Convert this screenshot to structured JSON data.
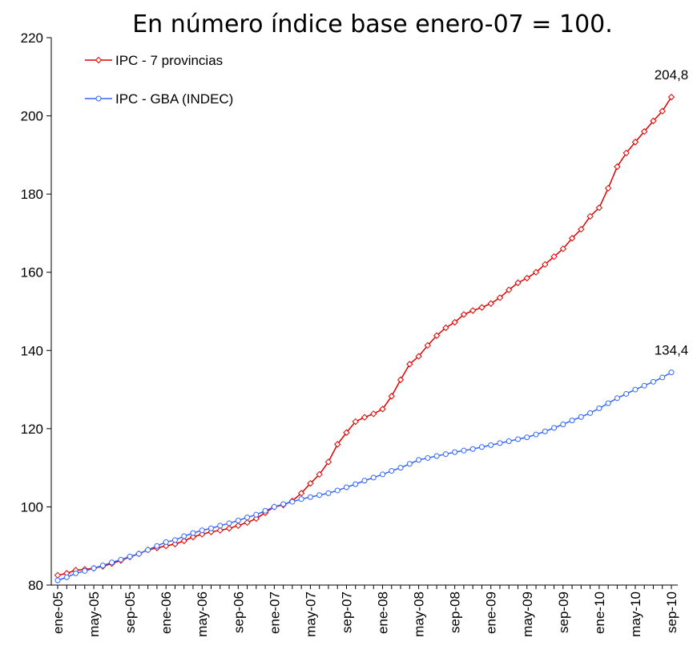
{
  "chart_data": {
    "type": "line",
    "title": "En número índice base enero-07 = 100.",
    "categories": [
      "ene-05",
      null,
      null,
      null,
      "may-05",
      null,
      null,
      null,
      "sep-05",
      null,
      null,
      null,
      "ene-06",
      null,
      null,
      null,
      "may-06",
      null,
      null,
      null,
      "sep-06",
      null,
      null,
      null,
      "ene-07",
      null,
      null,
      null,
      "may-07",
      null,
      null,
      null,
      "sep-07",
      null,
      null,
      null,
      "ene-08",
      null,
      null,
      null,
      "may-08",
      null,
      null,
      null,
      "sep-08",
      null,
      null,
      null,
      "ene-09",
      null,
      null,
      null,
      "may-09",
      null,
      null,
      null,
      "sep-09",
      null,
      null,
      null,
      "ene-10",
      null,
      null,
      null,
      "may-10",
      null,
      null,
      null,
      "sep-10"
    ],
    "series": [
      {
        "name": "IPC - 7 provincias",
        "color": "#e00000",
        "marker": "diamond",
        "values": [
          82.5,
          83,
          83.8,
          84,
          84.3,
          84.8,
          85.5,
          86.3,
          87.2,
          88,
          89,
          89.5,
          90,
          90.5,
          91.3,
          92.3,
          93,
          93.6,
          94,
          94.5,
          95.2,
          96,
          97,
          98.5,
          100,
          100.5,
          101.5,
          103.5,
          106,
          108.3,
          111.5,
          116,
          119,
          121.8,
          122.9,
          123.8,
          125,
          128.3,
          132.5,
          136.5,
          138.5,
          141.3,
          143.8,
          145.8,
          147.2,
          149.2,
          150.2,
          151,
          152,
          153.5,
          155.5,
          157.3,
          158.5,
          160,
          162,
          164,
          166,
          168.7,
          171,
          174.3,
          176.5,
          181.5,
          187,
          190.5,
          193.3,
          196,
          198.7,
          201.2,
          204.8
        ],
        "value_labels": [
          null,
          null,
          null,
          null,
          null,
          null,
          null,
          null,
          null,
          null,
          null,
          null,
          null,
          null,
          null,
          null,
          null,
          null,
          null,
          null,
          null,
          null,
          null,
          null,
          null,
          null,
          null,
          null,
          null,
          null,
          null,
          null,
          null,
          null,
          null,
          null,
          null,
          null,
          null,
          null,
          null,
          null,
          null,
          null,
          null,
          null,
          null,
          null,
          null,
          null,
          null,
          null,
          null,
          null,
          null,
          null,
          null,
          null,
          null,
          null,
          null,
          null,
          null,
          null,
          null,
          null,
          null,
          null,
          "204,8"
        ]
      },
      {
        "name": "IPC - GBA (INDEC)",
        "color": "#3366ff",
        "marker": "circle",
        "values": [
          81.2,
          82,
          83,
          83.6,
          84.3,
          85,
          85.8,
          86.5,
          87.3,
          88,
          89,
          90,
          91,
          91.5,
          92.5,
          93.3,
          94,
          94.5,
          95.2,
          95.8,
          96.5,
          97.3,
          98,
          99,
          100,
          100.7,
          101.3,
          102,
          102.5,
          103,
          103.5,
          104.2,
          105,
          105.8,
          106.7,
          107.5,
          108.3,
          109.2,
          110,
          111,
          112,
          112.5,
          113,
          113.5,
          114,
          114.4,
          114.8,
          115.3,
          115.8,
          116.3,
          116.8,
          117.3,
          117.8,
          118.5,
          119.3,
          120.2,
          121.1,
          122.1,
          123,
          124,
          125.2,
          126.5,
          127.8,
          128.9,
          130,
          131,
          132,
          133.1,
          134.4
        ],
        "value_labels": [
          null,
          null,
          null,
          null,
          null,
          null,
          null,
          null,
          null,
          null,
          null,
          null,
          null,
          null,
          null,
          null,
          null,
          null,
          null,
          null,
          null,
          null,
          null,
          null,
          null,
          null,
          null,
          null,
          null,
          null,
          null,
          null,
          null,
          null,
          null,
          null,
          null,
          null,
          null,
          null,
          null,
          null,
          null,
          null,
          null,
          null,
          null,
          null,
          null,
          null,
          null,
          null,
          null,
          null,
          null,
          null,
          null,
          null,
          null,
          null,
          null,
          null,
          null,
          null,
          null,
          null,
          null,
          null,
          "134,4"
        ]
      }
    ],
    "ylim": [
      80,
      220
    ],
    "yticks": [
      80,
      100,
      120,
      140,
      160,
      180,
      200,
      220
    ],
    "legend": "top-left"
  }
}
